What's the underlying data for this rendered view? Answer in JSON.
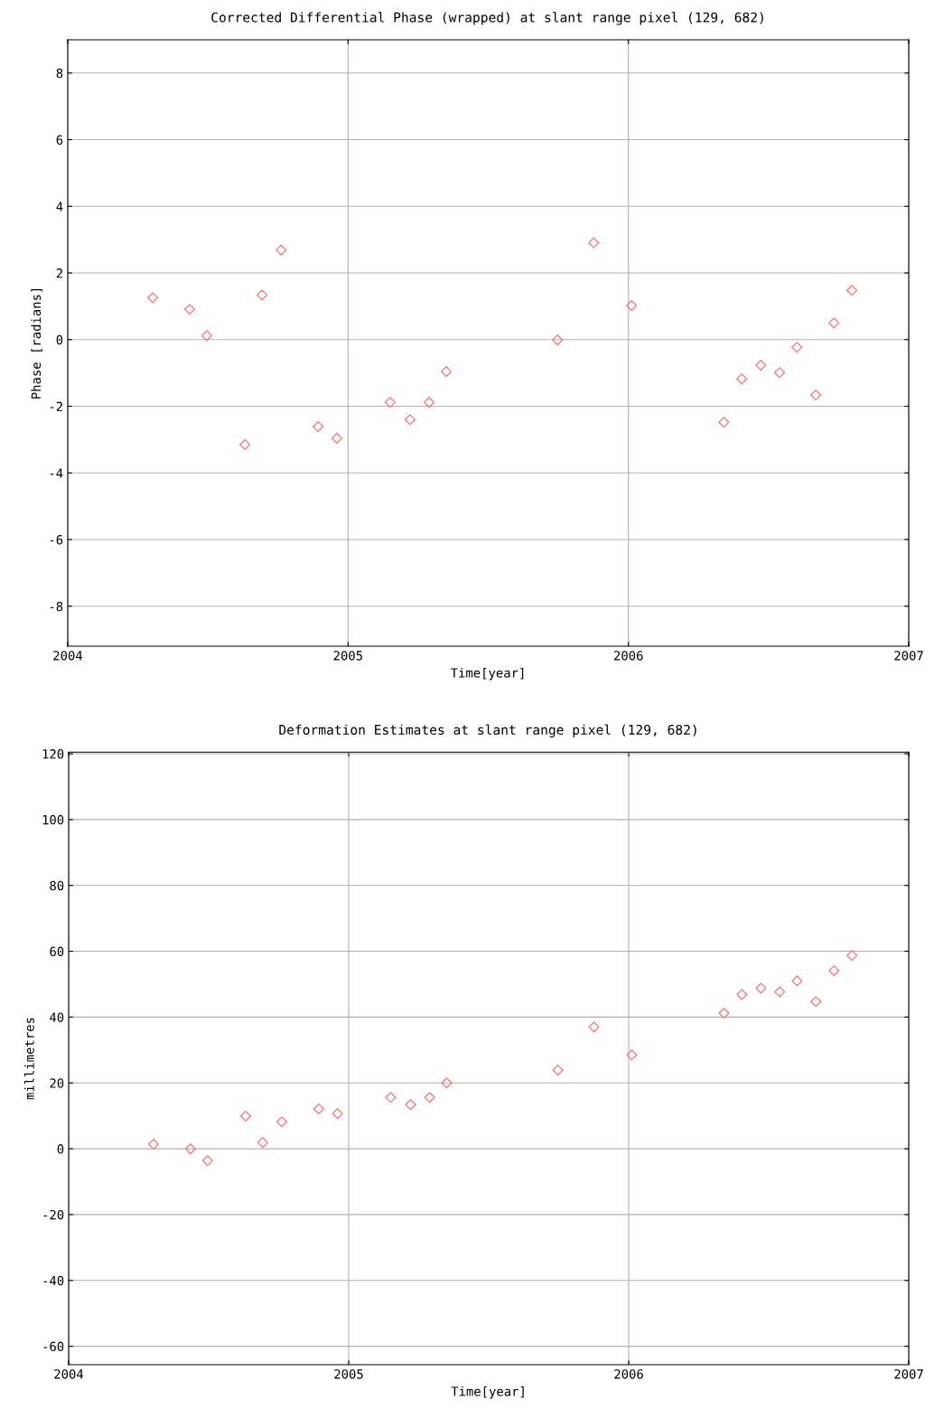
{
  "chart_data": [
    {
      "type": "scatter",
      "title": "Corrected Differential Phase (wrapped) at slant range pixel (129, 682)",
      "xlabel": "Time[year]",
      "ylabel": "Phase [radians]",
      "marker": "diamond",
      "grid": true,
      "x": [
        2004.303,
        2004.435,
        2004.496,
        2004.632,
        2004.693,
        2004.761,
        2004.893,
        2004.96,
        2005.15,
        2005.221,
        2005.289,
        2005.35,
        2005.747,
        2005.876,
        2006.011,
        2006.34,
        2006.404,
        2006.472,
        2006.539,
        2006.601,
        2006.668,
        2006.733,
        2006.797
      ],
      "series": [
        {
          "color": "#ff7070",
          "values": [
            1.26,
            0.91,
            0.12,
            -3.15,
            1.34,
            2.69,
            -2.61,
            -2.96,
            -1.88,
            -2.4,
            -1.88,
            -0.96,
            -0.01,
            2.91,
            1.02,
            -2.48,
            -1.18,
            -0.77,
            -0.99,
            -0.23,
            -1.66,
            0.5,
            1.48
          ]
        }
      ],
      "xlim": [
        2004,
        2007
      ],
      "xticks": [
        2004,
        2005,
        2006,
        2007
      ],
      "ylim": [
        -9.2,
        9
      ],
      "yticks": [
        -8,
        -6,
        -4,
        -2,
        0,
        2,
        4,
        6,
        8
      ]
    },
    {
      "type": "scatter",
      "title": "Deformation Estimates at slant range pixel (129, 682)",
      "xlabel": "Time[year]",
      "ylabel": "millimetres",
      "marker": "diamond",
      "grid": true,
      "x": [
        2004.303,
        2004.435,
        2004.496,
        2004.632,
        2004.693,
        2004.761,
        2004.893,
        2004.96,
        2005.15,
        2005.221,
        2005.289,
        2005.35,
        2005.747,
        2005.876,
        2006.011,
        2006.34,
        2006.404,
        2006.472,
        2006.539,
        2006.601,
        2006.668,
        2006.733,
        2006.797
      ],
      "series": [
        {
          "color": "#ff7070",
          "values": [
            1.4,
            0,
            -3.6,
            9.9,
            1.9,
            8.2,
            12.1,
            10.7,
            15.6,
            13.4,
            15.6,
            20.0,
            23.9,
            37.0,
            28.5,
            41.2,
            46.9,
            48.8,
            47.7,
            51.0,
            44.7,
            54.1,
            58.7
          ]
        }
      ],
      "xlim": [
        2004,
        2007
      ],
      "xticks": [
        2004,
        2005,
        2006,
        2007
      ],
      "ylim": [
        -65.6,
        120.5
      ],
      "yticks": [
        -60,
        -40,
        -20,
        0,
        20,
        40,
        60,
        80,
        100,
        120
      ]
    }
  ]
}
